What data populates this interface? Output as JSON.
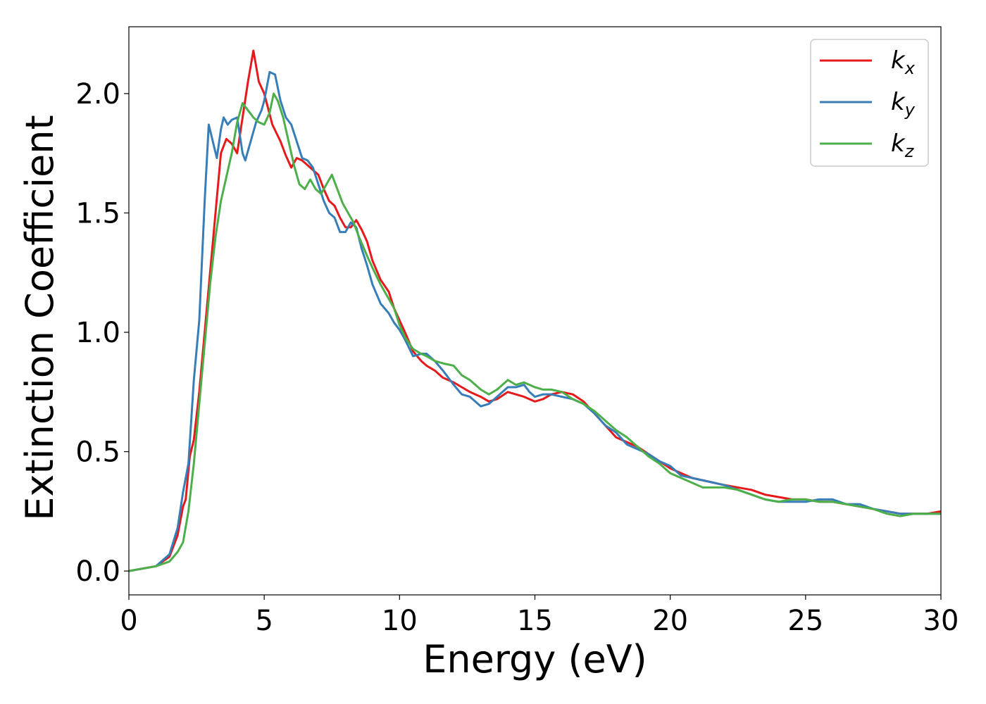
{
  "chart_data": {
    "type": "line",
    "xlabel": "Energy (eV)",
    "ylabel": "Extinction Coefficient",
    "xlim": [
      0,
      30
    ],
    "ylim": [
      -0.1,
      2.28
    ],
    "x_ticks": [
      0,
      5,
      10,
      15,
      20,
      25,
      30
    ],
    "y_ticks": [
      0.0,
      0.5,
      1.0,
      1.5,
      2.0
    ],
    "x_tick_labels": [
      "0",
      "5",
      "10",
      "15",
      "20",
      "25",
      "30"
    ],
    "y_tick_labels": [
      "0.0",
      "0.5",
      "1.0",
      "1.5",
      "2.0"
    ],
    "grid": false,
    "legend_position": "top-right",
    "series": [
      {
        "name": "k_x",
        "label_main": "k",
        "label_sub": "x",
        "color": "#e41a1c",
        "points": [
          [
            0,
            0.0
          ],
          [
            0.5,
            0.01
          ],
          [
            1.0,
            0.02
          ],
          [
            1.5,
            0.06
          ],
          [
            1.8,
            0.15
          ],
          [
            2.0,
            0.27
          ],
          [
            2.1,
            0.3
          ],
          [
            2.25,
            0.48
          ],
          [
            2.4,
            0.55
          ],
          [
            2.6,
            0.75
          ],
          [
            2.8,
            1.0
          ],
          [
            3.0,
            1.25
          ],
          [
            3.2,
            1.5
          ],
          [
            3.4,
            1.75
          ],
          [
            3.6,
            1.81
          ],
          [
            3.8,
            1.79
          ],
          [
            4.0,
            1.75
          ],
          [
            4.2,
            1.9
          ],
          [
            4.4,
            2.05
          ],
          [
            4.6,
            2.18
          ],
          [
            4.8,
            2.05
          ],
          [
            5.0,
            2.0
          ],
          [
            5.3,
            1.87
          ],
          [
            5.6,
            1.8
          ],
          [
            5.8,
            1.74
          ],
          [
            6.0,
            1.69
          ],
          [
            6.2,
            1.73
          ],
          [
            6.4,
            1.72
          ],
          [
            6.6,
            1.7
          ],
          [
            6.8,
            1.68
          ],
          [
            7.0,
            1.66
          ],
          [
            7.2,
            1.6
          ],
          [
            7.4,
            1.55
          ],
          [
            7.6,
            1.53
          ],
          [
            7.8,
            1.48
          ],
          [
            8.0,
            1.44
          ],
          [
            8.2,
            1.44
          ],
          [
            8.4,
            1.47
          ],
          [
            8.6,
            1.43
          ],
          [
            8.8,
            1.38
          ],
          [
            9.0,
            1.3
          ],
          [
            9.3,
            1.22
          ],
          [
            9.6,
            1.17
          ],
          [
            9.8,
            1.1
          ],
          [
            10.0,
            1.05
          ],
          [
            10.2,
            1.0
          ],
          [
            10.5,
            0.92
          ],
          [
            10.8,
            0.88
          ],
          [
            11.0,
            0.86
          ],
          [
            11.3,
            0.84
          ],
          [
            11.6,
            0.81
          ],
          [
            12.0,
            0.79
          ],
          [
            12.3,
            0.77
          ],
          [
            12.6,
            0.75
          ],
          [
            13.0,
            0.73
          ],
          [
            13.3,
            0.71
          ],
          [
            13.6,
            0.72
          ],
          [
            14.0,
            0.75
          ],
          [
            14.3,
            0.74
          ],
          [
            14.6,
            0.73
          ],
          [
            15.0,
            0.71
          ],
          [
            15.3,
            0.72
          ],
          [
            15.6,
            0.74
          ],
          [
            16.0,
            0.75
          ],
          [
            16.4,
            0.74
          ],
          [
            16.8,
            0.71
          ],
          [
            17.2,
            0.66
          ],
          [
            17.6,
            0.61
          ],
          [
            18.0,
            0.56
          ],
          [
            18.4,
            0.54
          ],
          [
            18.8,
            0.52
          ],
          [
            19.2,
            0.49
          ],
          [
            19.6,
            0.46
          ],
          [
            20.0,
            0.43
          ],
          [
            20.4,
            0.41
          ],
          [
            20.8,
            0.39
          ],
          [
            21.2,
            0.38
          ],
          [
            21.6,
            0.37
          ],
          [
            22.0,
            0.36
          ],
          [
            22.5,
            0.35
          ],
          [
            23.0,
            0.34
          ],
          [
            23.5,
            0.32
          ],
          [
            24.0,
            0.31
          ],
          [
            24.5,
            0.3
          ],
          [
            25.0,
            0.3
          ],
          [
            25.5,
            0.29
          ],
          [
            26.0,
            0.29
          ],
          [
            26.5,
            0.28
          ],
          [
            27.0,
            0.27
          ],
          [
            27.5,
            0.26
          ],
          [
            28.0,
            0.25
          ],
          [
            28.5,
            0.24
          ],
          [
            29.0,
            0.24
          ],
          [
            29.5,
            0.24
          ],
          [
            30.0,
            0.25
          ]
        ]
      },
      {
        "name": "k_y",
        "label_main": "k",
        "label_sub": "y",
        "color": "#377eb8",
        "points": [
          [
            0,
            0.0
          ],
          [
            0.5,
            0.01
          ],
          [
            1.0,
            0.02
          ],
          [
            1.5,
            0.07
          ],
          [
            1.8,
            0.18
          ],
          [
            2.0,
            0.33
          ],
          [
            2.2,
            0.45
          ],
          [
            2.4,
            0.8
          ],
          [
            2.6,
            1.05
          ],
          [
            2.8,
            1.55
          ],
          [
            2.95,
            1.87
          ],
          [
            3.1,
            1.8
          ],
          [
            3.25,
            1.73
          ],
          [
            3.4,
            1.85
          ],
          [
            3.5,
            1.9
          ],
          [
            3.65,
            1.87
          ],
          [
            3.8,
            1.89
          ],
          [
            4.0,
            1.9
          ],
          [
            4.2,
            1.75
          ],
          [
            4.3,
            1.72
          ],
          [
            4.5,
            1.8
          ],
          [
            4.7,
            1.88
          ],
          [
            4.9,
            1.93
          ],
          [
            5.0,
            1.97
          ],
          [
            5.2,
            2.09
          ],
          [
            5.4,
            2.08
          ],
          [
            5.6,
            1.97
          ],
          [
            5.8,
            1.9
          ],
          [
            6.0,
            1.87
          ],
          [
            6.2,
            1.8
          ],
          [
            6.4,
            1.73
          ],
          [
            6.6,
            1.72
          ],
          [
            6.8,
            1.69
          ],
          [
            7.0,
            1.62
          ],
          [
            7.2,
            1.55
          ],
          [
            7.4,
            1.5
          ],
          [
            7.6,
            1.48
          ],
          [
            7.8,
            1.42
          ],
          [
            8.0,
            1.42
          ],
          [
            8.2,
            1.46
          ],
          [
            8.4,
            1.44
          ],
          [
            8.6,
            1.35
          ],
          [
            8.8,
            1.28
          ],
          [
            9.0,
            1.2
          ],
          [
            9.3,
            1.12
          ],
          [
            9.6,
            1.08
          ],
          [
            9.8,
            1.04
          ],
          [
            10.0,
            1.01
          ],
          [
            10.2,
            0.97
          ],
          [
            10.5,
            0.9
          ],
          [
            10.8,
            0.91
          ],
          [
            11.0,
            0.91
          ],
          [
            11.3,
            0.88
          ],
          [
            11.6,
            0.84
          ],
          [
            12.0,
            0.78
          ],
          [
            12.3,
            0.74
          ],
          [
            12.6,
            0.73
          ],
          [
            13.0,
            0.69
          ],
          [
            13.3,
            0.7
          ],
          [
            13.6,
            0.73
          ],
          [
            14.0,
            0.77
          ],
          [
            14.3,
            0.77
          ],
          [
            14.6,
            0.78
          ],
          [
            14.8,
            0.75
          ],
          [
            15.0,
            0.73
          ],
          [
            15.3,
            0.74
          ],
          [
            15.6,
            0.74
          ],
          [
            16.0,
            0.73
          ],
          [
            16.4,
            0.72
          ],
          [
            16.8,
            0.7
          ],
          [
            17.2,
            0.66
          ],
          [
            17.6,
            0.61
          ],
          [
            18.0,
            0.58
          ],
          [
            18.4,
            0.53
          ],
          [
            18.8,
            0.51
          ],
          [
            19.2,
            0.49
          ],
          [
            19.6,
            0.46
          ],
          [
            20.0,
            0.44
          ],
          [
            20.4,
            0.4
          ],
          [
            20.8,
            0.39
          ],
          [
            21.2,
            0.38
          ],
          [
            21.6,
            0.37
          ],
          [
            22.0,
            0.36
          ],
          [
            22.5,
            0.34
          ],
          [
            23.0,
            0.32
          ],
          [
            23.5,
            0.3
          ],
          [
            24.0,
            0.29
          ],
          [
            24.5,
            0.29
          ],
          [
            25.0,
            0.29
          ],
          [
            25.5,
            0.3
          ],
          [
            26.0,
            0.3
          ],
          [
            26.5,
            0.28
          ],
          [
            27.0,
            0.28
          ],
          [
            27.5,
            0.26
          ],
          [
            28.0,
            0.25
          ],
          [
            28.5,
            0.24
          ],
          [
            29.0,
            0.24
          ],
          [
            29.5,
            0.24
          ],
          [
            30.0,
            0.24
          ]
        ]
      },
      {
        "name": "k_z",
        "label_main": "k",
        "label_sub": "z",
        "color": "#4daf4a",
        "points": [
          [
            0,
            0.0
          ],
          [
            0.5,
            0.01
          ],
          [
            1.0,
            0.02
          ],
          [
            1.5,
            0.04
          ],
          [
            1.8,
            0.08
          ],
          [
            2.0,
            0.12
          ],
          [
            2.2,
            0.25
          ],
          [
            2.4,
            0.45
          ],
          [
            2.6,
            0.7
          ],
          [
            2.8,
            0.95
          ],
          [
            3.0,
            1.2
          ],
          [
            3.2,
            1.4
          ],
          [
            3.4,
            1.55
          ],
          [
            3.6,
            1.65
          ],
          [
            3.8,
            1.75
          ],
          [
            4.0,
            1.88
          ],
          [
            4.2,
            1.96
          ],
          [
            4.4,
            1.93
          ],
          [
            4.6,
            1.9
          ],
          [
            4.8,
            1.88
          ],
          [
            5.0,
            1.87
          ],
          [
            5.2,
            1.92
          ],
          [
            5.35,
            2.0
          ],
          [
            5.5,
            1.97
          ],
          [
            5.7,
            1.9
          ],
          [
            5.9,
            1.8
          ],
          [
            6.1,
            1.7
          ],
          [
            6.3,
            1.62
          ],
          [
            6.5,
            1.6
          ],
          [
            6.7,
            1.64
          ],
          [
            6.9,
            1.6
          ],
          [
            7.1,
            1.58
          ],
          [
            7.3,
            1.62
          ],
          [
            7.5,
            1.66
          ],
          [
            7.7,
            1.6
          ],
          [
            7.9,
            1.54
          ],
          [
            8.1,
            1.5
          ],
          [
            8.3,
            1.46
          ],
          [
            8.5,
            1.4
          ],
          [
            8.8,
            1.32
          ],
          [
            9.0,
            1.27
          ],
          [
            9.3,
            1.2
          ],
          [
            9.6,
            1.14
          ],
          [
            9.8,
            1.1
          ],
          [
            10.0,
            1.03
          ],
          [
            10.2,
            0.98
          ],
          [
            10.5,
            0.93
          ],
          [
            10.8,
            0.91
          ],
          [
            11.0,
            0.9
          ],
          [
            11.3,
            0.88
          ],
          [
            11.6,
            0.87
          ],
          [
            12.0,
            0.86
          ],
          [
            12.3,
            0.82
          ],
          [
            12.6,
            0.8
          ],
          [
            13.0,
            0.76
          ],
          [
            13.3,
            0.74
          ],
          [
            13.6,
            0.76
          ],
          [
            14.0,
            0.8
          ],
          [
            14.3,
            0.78
          ],
          [
            14.6,
            0.79
          ],
          [
            15.0,
            0.77
          ],
          [
            15.3,
            0.76
          ],
          [
            15.6,
            0.76
          ],
          [
            16.0,
            0.75
          ],
          [
            16.4,
            0.72
          ],
          [
            16.8,
            0.7
          ],
          [
            17.2,
            0.67
          ],
          [
            17.6,
            0.63
          ],
          [
            18.0,
            0.59
          ],
          [
            18.4,
            0.56
          ],
          [
            18.8,
            0.52
          ],
          [
            19.2,
            0.48
          ],
          [
            19.6,
            0.45
          ],
          [
            20.0,
            0.41
          ],
          [
            20.4,
            0.39
          ],
          [
            20.8,
            0.37
          ],
          [
            21.2,
            0.35
          ],
          [
            21.6,
            0.35
          ],
          [
            22.0,
            0.35
          ],
          [
            22.5,
            0.34
          ],
          [
            23.0,
            0.32
          ],
          [
            23.5,
            0.3
          ],
          [
            24.0,
            0.29
          ],
          [
            24.5,
            0.3
          ],
          [
            25.0,
            0.3
          ],
          [
            25.5,
            0.29
          ],
          [
            26.0,
            0.29
          ],
          [
            26.5,
            0.28
          ],
          [
            27.0,
            0.27
          ],
          [
            27.5,
            0.26
          ],
          [
            28.0,
            0.24
          ],
          [
            28.5,
            0.23
          ],
          [
            29.0,
            0.24
          ],
          [
            29.5,
            0.24
          ],
          [
            30.0,
            0.24
          ]
        ]
      }
    ]
  }
}
